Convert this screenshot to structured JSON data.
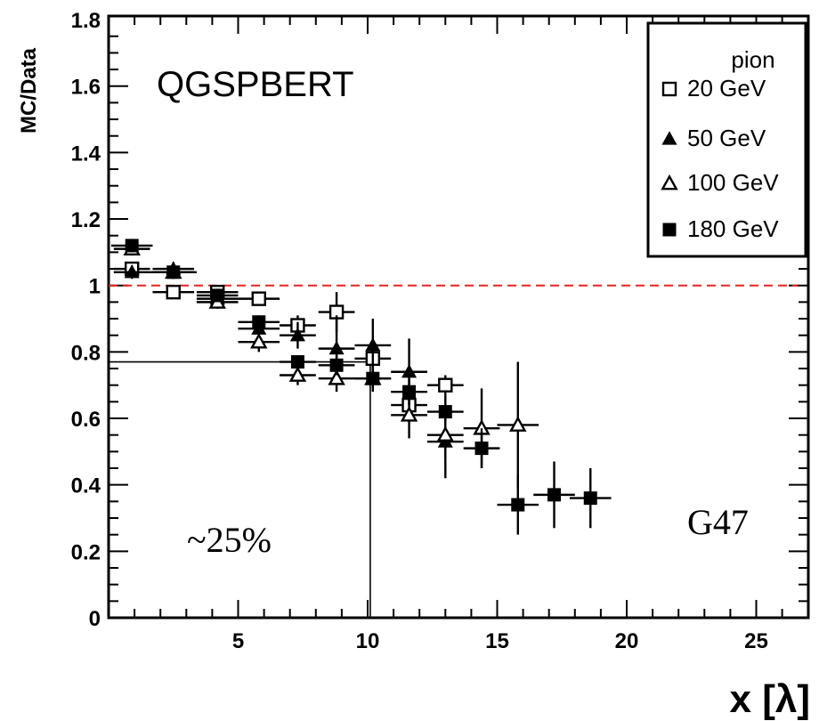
{
  "chart_data": {
    "type": "scatter",
    "xlabel": "x [λ]",
    "ylabel": "MC/Data",
    "xlim": [
      0,
      27
    ],
    "ylim": [
      0,
      1.8
    ],
    "x_ticks": [
      5,
      10,
      15,
      20,
      25
    ],
    "y_ticks": [
      0,
      0.2,
      0.4,
      0.6,
      0.8,
      1,
      1.2,
      1.4,
      1.6,
      1.8
    ],
    "y_tick_labels": [
      "0",
      "0.2",
      "0.4",
      "0.6",
      "0.8",
      "1",
      "1.2",
      "1.4",
      "1.6",
      "1.8"
    ],
    "grid": false,
    "legend_position": "top-right",
    "legend_title": "pion",
    "annotations": {
      "model": "QGSPBERT",
      "percent": "~25%",
      "tag": "G47"
    },
    "reference_line": {
      "y": 1.0,
      "color": "#e8231f",
      "style": "dashed"
    },
    "marker_lines": {
      "x": 10.1,
      "y": 0.77
    },
    "series": [
      {
        "name": "20 GeV",
        "marker": "open-square",
        "points": [
          {
            "x": 0.9,
            "y": 1.05,
            "xerr": 0.7,
            "yerr": 0.01
          },
          {
            "x": 2.5,
            "y": 0.98,
            "xerr": 0.8,
            "yerr": 0.02
          },
          {
            "x": 4.2,
            "y": 0.98,
            "xerr": 0.8,
            "yerr": 0.02
          },
          {
            "x": 5.8,
            "y": 0.96,
            "xerr": 0.8,
            "yerr": 0.02
          },
          {
            "x": 7.3,
            "y": 0.88,
            "xerr": 0.7,
            "yerr": 0.03
          },
          {
            "x": 8.8,
            "y": 0.92,
            "xerr": 0.7,
            "yerr": 0.06
          },
          {
            "x": 10.2,
            "y": 0.78,
            "xerr": 0.7,
            "yerr": 0.04
          },
          {
            "x": 11.6,
            "y": 0.64,
            "xerr": 0.7,
            "yerr": 0.04
          },
          {
            "x": 13.0,
            "y": 0.7,
            "xerr": 0.7,
            "yerr": 0.03
          }
        ]
      },
      {
        "name": "50 GeV",
        "marker": "filled-triangle",
        "points": [
          {
            "x": 0.9,
            "y": 1.04,
            "xerr": 0.7,
            "yerr": 0.02
          },
          {
            "x": 2.5,
            "y": 1.05,
            "xerr": 0.8,
            "yerr": 0.02
          },
          {
            "x": 4.2,
            "y": 0.96,
            "xerr": 0.8,
            "yerr": 0.02
          },
          {
            "x": 5.8,
            "y": 0.87,
            "xerr": 0.8,
            "yerr": 0.03
          },
          {
            "x": 7.3,
            "y": 0.85,
            "xerr": 0.7,
            "yerr": 0.04
          },
          {
            "x": 8.8,
            "y": 0.81,
            "xerr": 0.7,
            "yerr": 0.1
          },
          {
            "x": 10.2,
            "y": 0.82,
            "xerr": 0.7,
            "yerr": 0.08
          },
          {
            "x": 11.6,
            "y": 0.74,
            "xerr": 0.7,
            "yerr": 0.1
          },
          {
            "x": 13.0,
            "y": 0.53,
            "xerr": 0.7,
            "yerr": 0.11
          }
        ]
      },
      {
        "name": "100 GeV",
        "marker": "open-triangle",
        "points": [
          {
            "x": 0.9,
            "y": 1.11,
            "xerr": 0.7,
            "yerr": 0.02
          },
          {
            "x": 2.5,
            "y": 1.04,
            "xerr": 0.8,
            "yerr": 0.02
          },
          {
            "x": 4.2,
            "y": 0.95,
            "xerr": 0.8,
            "yerr": 0.02
          },
          {
            "x": 5.8,
            "y": 0.83,
            "xerr": 0.8,
            "yerr": 0.03
          },
          {
            "x": 7.3,
            "y": 0.73,
            "xerr": 0.7,
            "yerr": 0.03
          },
          {
            "x": 8.8,
            "y": 0.72,
            "xerr": 0.7,
            "yerr": 0.04
          },
          {
            "x": 10.2,
            "y": 0.72,
            "xerr": 0.7,
            "yerr": 0.04
          },
          {
            "x": 11.6,
            "y": 0.61,
            "xerr": 0.7,
            "yerr": 0.07
          },
          {
            "x": 13.0,
            "y": 0.55,
            "xerr": 0.7,
            "yerr": 0.07
          },
          {
            "x": 14.4,
            "y": 0.57,
            "xerr": 0.7,
            "yerr": 0.12
          },
          {
            "x": 15.8,
            "y": 0.58,
            "xerr": 0.8,
            "yerr": 0.19
          }
        ]
      },
      {
        "name": "180 GeV",
        "marker": "filled-square",
        "points": [
          {
            "x": 0.9,
            "y": 1.12,
            "xerr": 0.8,
            "yerr": 0.02
          },
          {
            "x": 2.5,
            "y": 1.04,
            "xerr": 0.9,
            "yerr": 0.02
          },
          {
            "x": 4.2,
            "y": 0.97,
            "xerr": 0.8,
            "yerr": 0.02
          },
          {
            "x": 5.8,
            "y": 0.89,
            "xerr": 0.8,
            "yerr": 0.02
          },
          {
            "x": 7.3,
            "y": 0.77,
            "xerr": 0.7,
            "yerr": 0.02
          },
          {
            "x": 8.8,
            "y": 0.76,
            "xerr": 0.7,
            "yerr": 0.03
          },
          {
            "x": 10.2,
            "y": 0.72,
            "xerr": 0.7,
            "yerr": 0.03
          },
          {
            "x": 11.6,
            "y": 0.68,
            "xerr": 0.7,
            "yerr": 0.04
          },
          {
            "x": 13.0,
            "y": 0.62,
            "xerr": 0.7,
            "yerr": 0.05
          },
          {
            "x": 14.4,
            "y": 0.51,
            "xerr": 0.7,
            "yerr": 0.06
          },
          {
            "x": 15.8,
            "y": 0.34,
            "xerr": 0.8,
            "yerr": 0.09
          },
          {
            "x": 17.2,
            "y": 0.37,
            "xerr": 0.8,
            "yerr": 0.1
          },
          {
            "x": 18.6,
            "y": 0.36,
            "xerr": 0.8,
            "yerr": 0.09
          }
        ]
      }
    ]
  }
}
